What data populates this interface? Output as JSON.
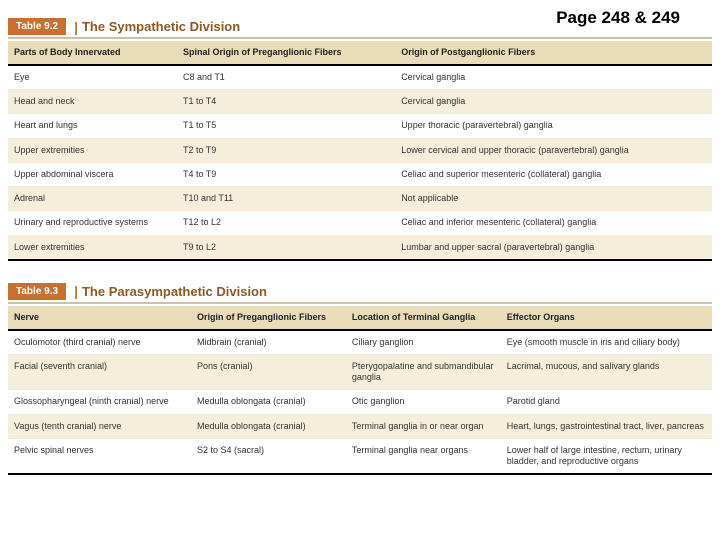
{
  "page_ref": "Page 248 & 249",
  "table1": {
    "badge": "Table 9.2",
    "sep": "|",
    "title": "The Sympathetic Division",
    "headers": {
      "h1": "Parts of Body Innervated",
      "h2": "Spinal Origin of Preganglionic Fibers",
      "h3": "Origin of Postganglionic Fibers"
    },
    "rows": [
      {
        "c1": "Eye",
        "c2": "C8 and T1",
        "c3": "Cervical ganglia"
      },
      {
        "c1": "Head and neck",
        "c2": "T1 to T4",
        "c3": "Cervical ganglia"
      },
      {
        "c1": "Heart and lungs",
        "c2": "T1 to T5",
        "c3": "Upper thoracic (paravertebral) ganglia"
      },
      {
        "c1": "Upper extremities",
        "c2": "T2 to T9",
        "c3": "Lower cervical and upper thoracic (paravertebral) ganglia"
      },
      {
        "c1": "Upper abdominal viscera",
        "c2": "T4 to T9",
        "c3": "Celiac and superior mesenteric (collateral) ganglia"
      },
      {
        "c1": "Adrenal",
        "c2": "T10 and T11",
        "c3": "Not applicable"
      },
      {
        "c1": "Urinary and reproductive systems",
        "c2": "T12 to L2",
        "c3": "Celiac and inferior mesenteric (collateral) ganglia"
      },
      {
        "c1": "Lower extremities",
        "c2": "T9 to L2",
        "c3": "Lumbar and upper sacral (paravertebral) ganglia"
      }
    ]
  },
  "table2": {
    "badge": "Table 9.3",
    "sep": "|",
    "title": "The Parasympathetic Division",
    "headers": {
      "h1": "Nerve",
      "h2": "Origin of Preganglionic Fibers",
      "h3": "Location of Terminal Ganglia",
      "h4": "Effector Organs"
    },
    "rows": [
      {
        "c1": "Oculomotor (third cranial) nerve",
        "c2": "Midbrain (cranial)",
        "c3": "Ciliary ganglion",
        "c4": "Eye (smooth muscle in iris and ciliary body)"
      },
      {
        "c1": "Facial (seventh cranial)",
        "c2": "Pons (cranial)",
        "c3": "Pterygopalatine and submandibular ganglia",
        "c4": "Lacrimal, mucous, and salivary glands"
      },
      {
        "c1": "Glossopharyngeal (ninth cranial) nerve",
        "c2": "Medulla oblongata (cranial)",
        "c3": "Otic ganglion",
        "c4": "Parotid gland"
      },
      {
        "c1": "Vagus (tenth cranial) nerve",
        "c2": "Medulla oblongata (cranial)",
        "c3": "Terminal ganglia in or near organ",
        "c4": "Heart, lungs, gastrointestinal tract, liver, pancreas"
      },
      {
        "c1": "Pelvic spinal nerves",
        "c2": "S2 to S4 (sacral)",
        "c3": "Terminal ganglia near organs",
        "c4": "Lower half of large intestine, rectum, urinary bladder, and reproductive organs"
      }
    ]
  }
}
